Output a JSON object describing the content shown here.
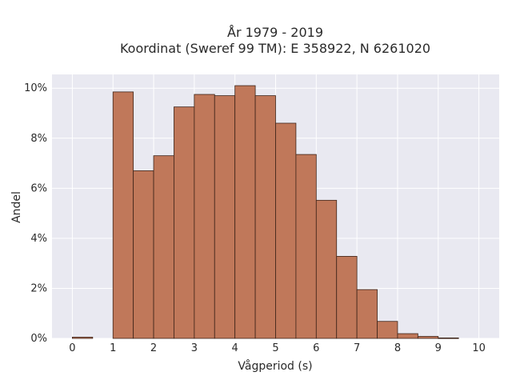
{
  "chart_data": {
    "type": "bar",
    "title_lines": [
      "År 1979 - 2019",
      "Koordinat (Sweref 99 TM): E 358922, N 6261020"
    ],
    "xlabel": "Vågperiod (s)",
    "ylabel": "Andel",
    "bin_width": 0.5,
    "bins": [
      {
        "x0": 0.0,
        "value": 0.0005
      },
      {
        "x0": 0.5,
        "value": 0.0
      },
      {
        "x0": 1.0,
        "value": 0.0985
      },
      {
        "x0": 1.5,
        "value": 0.067
      },
      {
        "x0": 2.0,
        "value": 0.073
      },
      {
        "x0": 2.5,
        "value": 0.0925
      },
      {
        "x0": 3.0,
        "value": 0.0975
      },
      {
        "x0": 3.5,
        "value": 0.097
      },
      {
        "x0": 4.0,
        "value": 0.101
      },
      {
        "x0": 4.5,
        "value": 0.097
      },
      {
        "x0": 5.0,
        "value": 0.086
      },
      {
        "x0": 5.5,
        "value": 0.0735
      },
      {
        "x0": 6.0,
        "value": 0.0552
      },
      {
        "x0": 6.5,
        "value": 0.0328
      },
      {
        "x0": 7.0,
        "value": 0.0195
      },
      {
        "x0": 7.5,
        "value": 0.0068
      },
      {
        "x0": 8.0,
        "value": 0.0019
      },
      {
        "x0": 8.5,
        "value": 0.0008
      },
      {
        "x0": 9.0,
        "value": 0.0002
      }
    ],
    "xticks": [
      0,
      1,
      2,
      3,
      4,
      5,
      6,
      7,
      8,
      9,
      10
    ],
    "yticks": [
      0,
      0.02,
      0.04,
      0.06,
      0.08,
      0.1
    ],
    "ytick_labels": [
      "0%",
      "2%",
      "4%",
      "6%",
      "8%",
      "10%"
    ],
    "xlim": [
      -0.5,
      10.5
    ],
    "ylim": [
      0,
      0.1055
    ],
    "grid": true,
    "colors": {
      "bar_fill": "#c0785a",
      "bar_stroke": "#3d2419",
      "plot_background": "#e9e9f1",
      "grid": "#ffffff"
    }
  }
}
